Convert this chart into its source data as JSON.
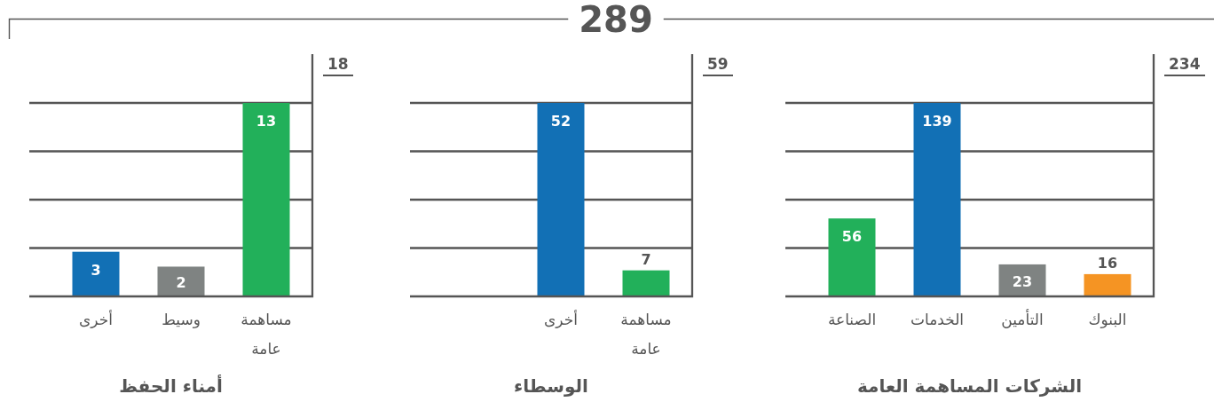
{
  "chart_data": [
    {
      "type": "other",
      "title": "289"
    },
    {
      "type": "bar",
      "title": "أمناء الحفظ",
      "categories": [
        "أخرى",
        "وسيط",
        "مساهمة عامة"
      ],
      "values": [
        3,
        2,
        13
      ],
      "colors": [
        "#1270b5",
        "#7f8382",
        "#22b05a"
      ],
      "data_labels": true,
      "grid": "y",
      "annotations": [
        "18"
      ]
    },
    {
      "type": "bar",
      "title": "الوسطاء",
      "categories": [
        "أخرى",
        "مساهمة عامة"
      ],
      "values": [
        52,
        7
      ],
      "colors": [
        "#1270b5",
        "#22b05a"
      ],
      "data_labels": true,
      "grid": "y",
      "annotations": [
        "59"
      ]
    },
    {
      "type": "bar",
      "title": "الشركات المساهمة العامة",
      "categories": [
        "الصناعة",
        "الخدمات",
        "التأمين",
        "البنوك"
      ],
      "values": [
        56,
        139,
        23,
        16
      ],
      "colors": [
        "#22b05a",
        "#1270b5",
        "#7f8382",
        "#f59423"
      ],
      "data_labels": true,
      "grid": "y",
      "annotations": [
        "234"
      ]
    }
  ]
}
